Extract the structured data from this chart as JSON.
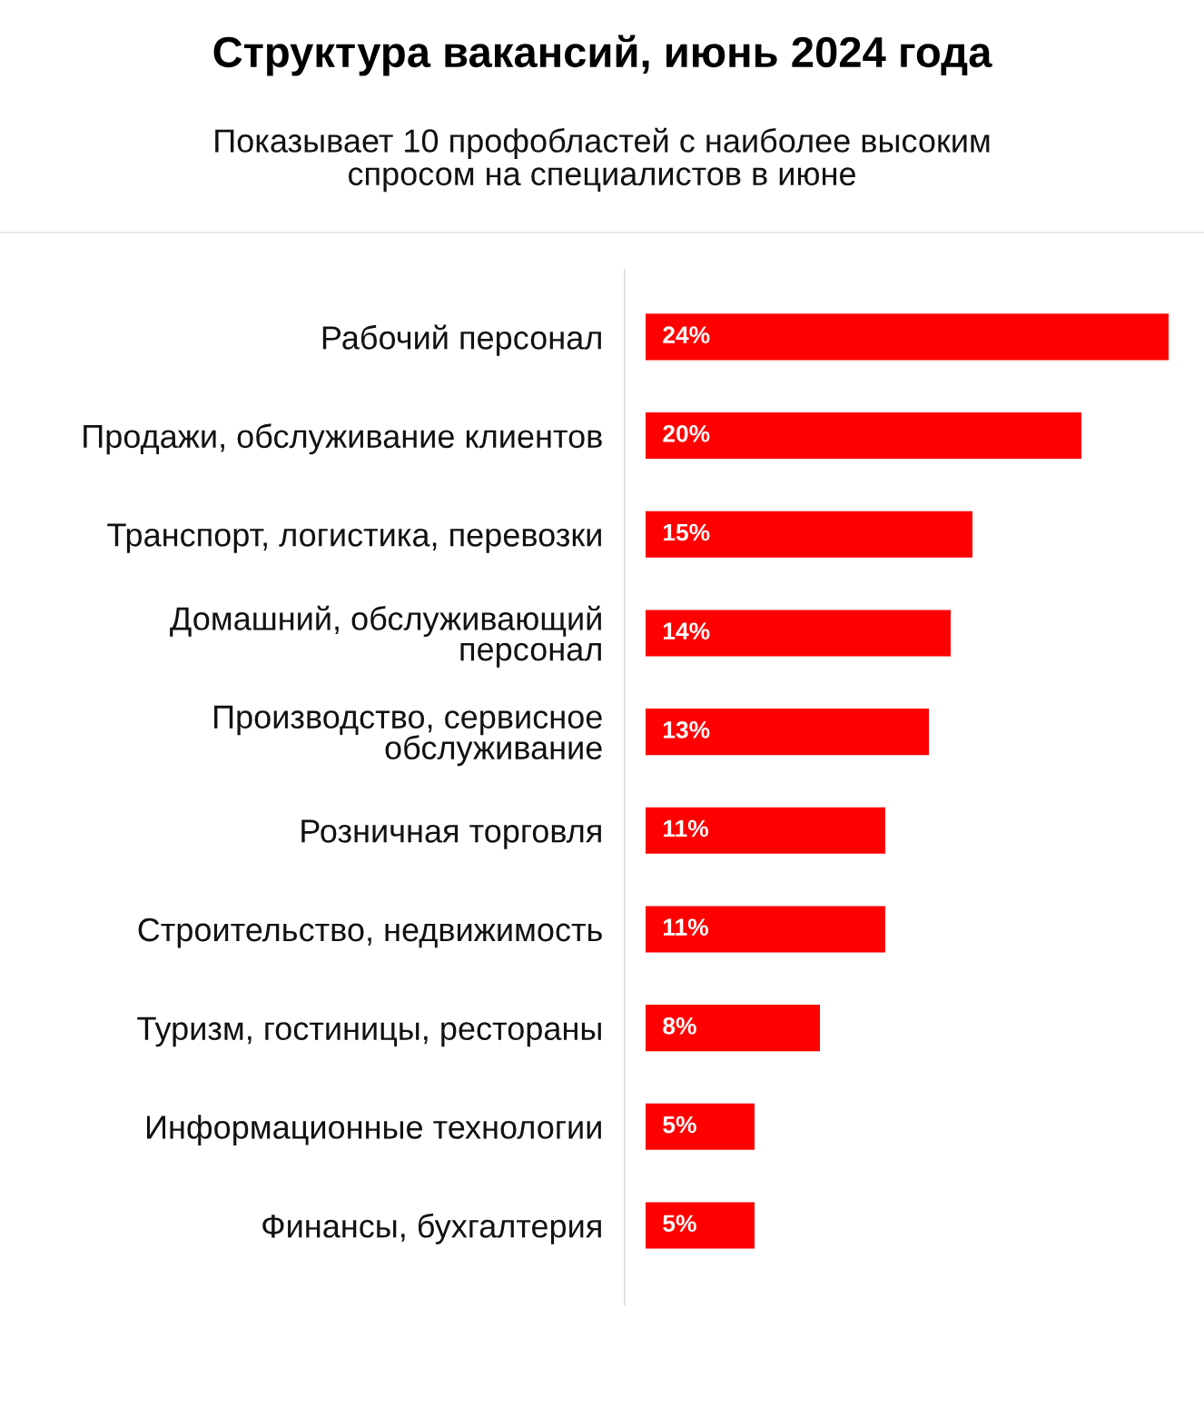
{
  "chart_data": {
    "type": "bar",
    "orientation": "horizontal",
    "title": "Структура вакансий, июнь 2024 года",
    "subtitle": "Показывает 10 профобластей с наиболее высоким\nспросом на специалистов в июне",
    "categories": [
      "Рабочий персонал",
      "Продажи, обслуживание клиентов",
      "Транспорт, логистика, перевозки",
      "Домашний, обслуживающий\nперсонал",
      "Производство, сервисное\nобслуживание",
      "Розничная торговля",
      "Строительство, недвижимость",
      "Туризм, гостиницы, рестораны",
      "Информационные технологии",
      "Финансы, бухгалтерия"
    ],
    "values": [
      24,
      20,
      15,
      14,
      13,
      11,
      11,
      8,
      5,
      5
    ],
    "value_labels": [
      "24%",
      "20%",
      "15%",
      "14%",
      "13%",
      "11%",
      "11%",
      "8%",
      "5%",
      "5%"
    ],
    "color": "#ff0000",
    "tick_labels": "y"
  }
}
